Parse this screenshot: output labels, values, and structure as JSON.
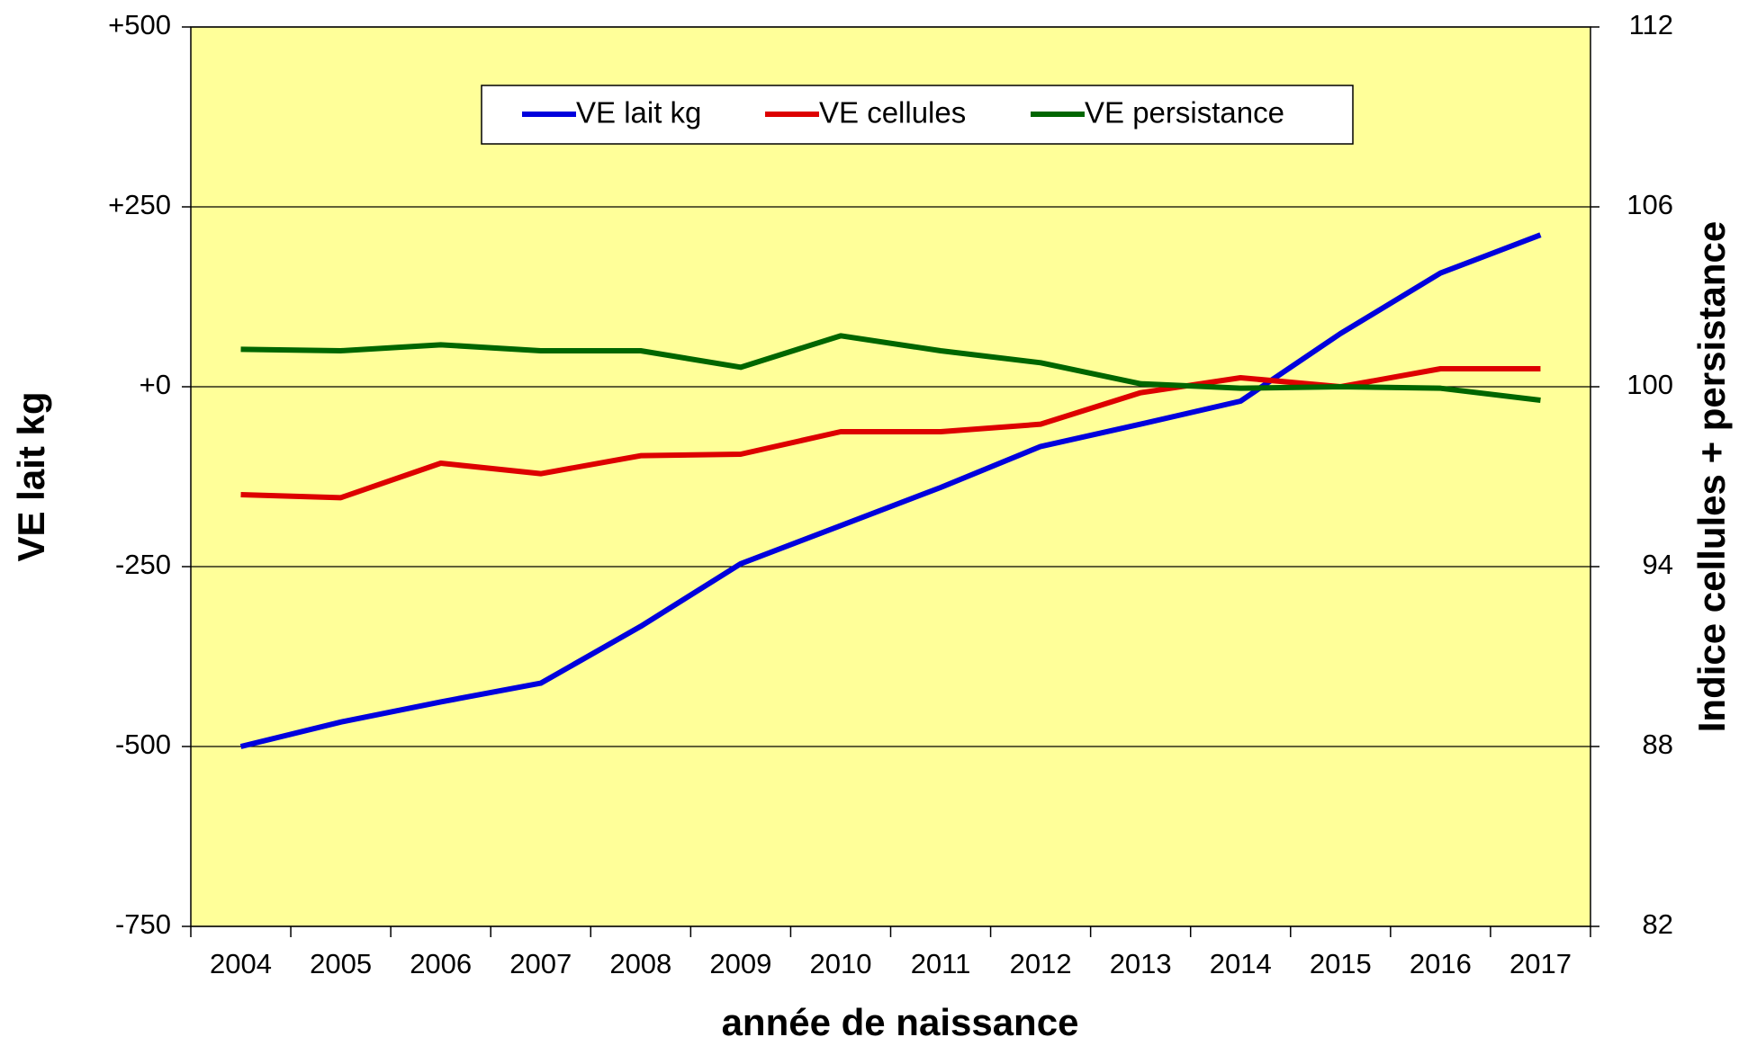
{
  "chart_data": {
    "type": "line",
    "x_label": "année de naissance",
    "y_label": "VE lait kg",
    "y2_label": "Indice cellules + persistance",
    "categories": [
      "2004",
      "2005",
      "2006",
      "2007",
      "2008",
      "2009",
      "2010",
      "2011",
      "2012",
      "2013",
      "2014",
      "2015",
      "2016",
      "2017"
    ],
    "series": [
      {
        "name": "VE lait kg",
        "color": "#0000dd",
        "values": [
          -500,
          -466,
          -438,
          -412,
          -333,
          -246,
          -193,
          -140,
          -83,
          -52,
          -20,
          74,
          158,
          211
        ]
      },
      {
        "name": "VE cellules",
        "color": "#dd0000",
        "axis": "y2",
        "values": [
          96.4,
          96.3,
          97.45,
          97.1,
          97.7,
          97.75,
          98.5,
          98.5,
          98.75,
          99.8,
          100.3,
          100,
          100.6,
          100.6
        ]
      },
      {
        "name": "VE persistance",
        "color": "#006600",
        "axis": "y2",
        "values": [
          101.25,
          101.2,
          101.4,
          101.2,
          101.2,
          100.65,
          101.7,
          101.2,
          100.8,
          100.1,
          99.95,
          100,
          99.95,
          99.55
        ]
      }
    ],
    "ylim": [
      -750,
      500
    ],
    "yticks": [
      -750,
      -500,
      -250,
      {
        "value": 0,
        "label": "+0"
      },
      {
        "value": 250,
        "label": "+250"
      },
      {
        "value": 500,
        "label": "+500"
      }
    ],
    "y2lim": [
      82,
      112
    ],
    "y2ticks": [
      82,
      88,
      94,
      100,
      106,
      112
    ],
    "grid": true,
    "legend": "top",
    "plot_background": "#ffff99"
  }
}
